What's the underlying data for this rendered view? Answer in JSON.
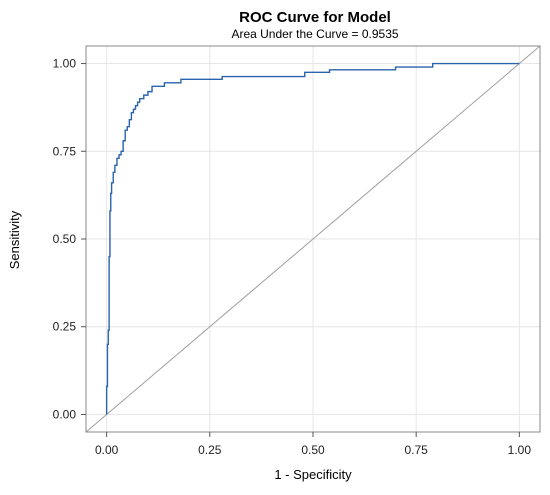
{
  "chart_data": {
    "type": "line",
    "title": "ROC Curve for Model",
    "subtitle": "Area Under the Curve = 0.9535",
    "xlabel": "1 - Specificity",
    "ylabel": "Sensitivity",
    "xlim": [
      -0.05,
      1.05
    ],
    "ylim": [
      -0.05,
      1.05
    ],
    "xticks": [
      0.0,
      0.25,
      0.5,
      0.75,
      1.0
    ],
    "xtick_labels": [
      "0.00",
      "0.25",
      "0.50",
      "0.75",
      "1.00"
    ],
    "yticks": [
      0.0,
      0.25,
      0.5,
      0.75,
      1.0
    ],
    "ytick_labels": [
      "0.00",
      "0.25",
      "0.50",
      "0.75",
      "1.00"
    ],
    "grid": true,
    "series": [
      {
        "color": "#2a63ad",
        "x": [
          0.0,
          0.0,
          0.002,
          0.002,
          0.004,
          0.004,
          0.006,
          0.006,
          0.008,
          0.008,
          0.01,
          0.01,
          0.012,
          0.012,
          0.016,
          0.016,
          0.02,
          0.02,
          0.025,
          0.025,
          0.03,
          0.03,
          0.035,
          0.035,
          0.04,
          0.04,
          0.045,
          0.045,
          0.05,
          0.05,
          0.055,
          0.055,
          0.06,
          0.06,
          0.065,
          0.065,
          0.07,
          0.07,
          0.075,
          0.075,
          0.08,
          0.08,
          0.09,
          0.09,
          0.1,
          0.1,
          0.11,
          0.11,
          0.14,
          0.14,
          0.18,
          0.18,
          0.28,
          0.28,
          0.48,
          0.48,
          0.54,
          0.54,
          0.7,
          0.7,
          0.79,
          0.79,
          1.0
        ],
        "y": [
          0.0,
          0.08,
          0.08,
          0.2,
          0.2,
          0.24,
          0.24,
          0.45,
          0.45,
          0.58,
          0.58,
          0.63,
          0.63,
          0.66,
          0.66,
          0.69,
          0.69,
          0.71,
          0.71,
          0.73,
          0.73,
          0.74,
          0.74,
          0.75,
          0.75,
          0.78,
          0.78,
          0.81,
          0.81,
          0.82,
          0.82,
          0.84,
          0.84,
          0.86,
          0.86,
          0.87,
          0.87,
          0.88,
          0.88,
          0.89,
          0.89,
          0.9,
          0.9,
          0.91,
          0.91,
          0.92,
          0.92,
          0.935,
          0.935,
          0.945,
          0.945,
          0.955,
          0.955,
          0.963,
          0.963,
          0.975,
          0.975,
          0.982,
          0.982,
          0.99,
          0.99,
          1.0,
          1.0
        ]
      },
      {
        "color": "#a0a0a0",
        "x": [
          -0.05,
          1.05
        ],
        "y": [
          -0.05,
          1.05
        ]
      }
    ]
  }
}
